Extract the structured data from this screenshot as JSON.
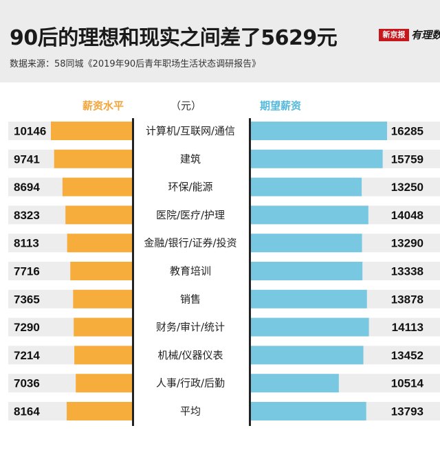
{
  "header": {
    "title": "90后的理想和现实之间差了5629元",
    "source": "数据来源：58同城《2019年90后青年职场生活状态调研报告》",
    "logo_box": "新京报",
    "logo_text": "有理数"
  },
  "columns": {
    "left_label": "薪资水平",
    "unit_label": "（元）",
    "right_label": "期望薪资"
  },
  "colors": {
    "actual": "#f7ad3b",
    "expected": "#79c8e2",
    "row_bg": "#ededed"
  },
  "chart_data": {
    "type": "bar",
    "categories": [
      "计算机/互联网/通信",
      "建筑",
      "环保/能源",
      "医院/医疗/护理",
      "金融/银行/证券/投资",
      "教育培训",
      "销售",
      "财务/审计/统计",
      "机械/仪器仪表",
      "人事/行政/后勤",
      "平均"
    ],
    "series": [
      {
        "name": "薪资水平",
        "values": [
          10146,
          9741,
          8694,
          8323,
          8113,
          7716,
          7365,
          7290,
          7214,
          7036,
          8164
        ]
      },
      {
        "name": "期望薪资",
        "values": [
          16285,
          15759,
          13250,
          14048,
          13290,
          13338,
          13878,
          14113,
          13452,
          10514,
          13793
        ]
      }
    ],
    "title": "90后的理想和现实之间差了5629元",
    "unit": "（元）"
  }
}
